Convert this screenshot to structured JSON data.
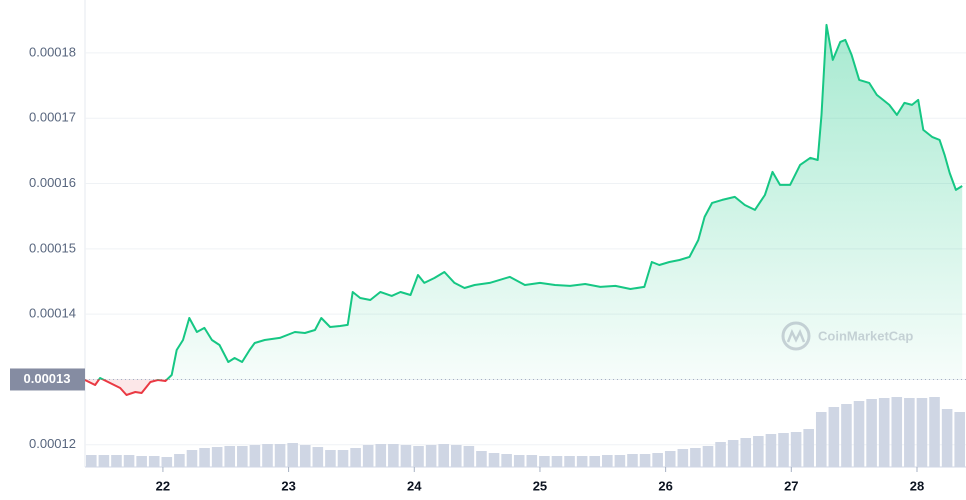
{
  "chart_data": {
    "type": "line",
    "watermark": "CoinMarketCap",
    "xlim": [
      21.38,
      28.39
    ],
    "xticks": [
      22,
      23,
      24,
      25,
      26,
      27,
      28
    ],
    "ylim": [
      0.0001166,
      0.0001881
    ],
    "yticks": [
      0.00012,
      0.00013,
      0.00014,
      0.00015,
      0.00016,
      0.00017,
      0.00018
    ],
    "grid": true,
    "baseline": 0.00013,
    "x": [
      21.38,
      21.46,
      21.5,
      21.58,
      21.66,
      21.71,
      21.78,
      21.83,
      21.9,
      21.96,
      22.02,
      22.07,
      22.11,
      22.16,
      22.21,
      22.27,
      22.33,
      22.39,
      22.45,
      22.52,
      22.57,
      22.63,
      22.69,
      22.73,
      22.81,
      22.93,
      23.05,
      23.13,
      23.21,
      23.26,
      23.33,
      23.41,
      23.47,
      23.51,
      23.57,
      23.65,
      23.73,
      23.82,
      23.89,
      23.97,
      24.03,
      24.08,
      24.16,
      24.24,
      24.32,
      24.4,
      24.48,
      24.6,
      24.76,
      24.88,
      25.0,
      25.12,
      25.24,
      25.36,
      25.48,
      25.6,
      25.72,
      25.83,
      25.89,
      25.95,
      26.03,
      26.11,
      26.19,
      26.26,
      26.31,
      26.37,
      26.45,
      26.55,
      26.63,
      26.71,
      26.79,
      26.85,
      26.91,
      26.99,
      27.07,
      27.15,
      27.21,
      27.24,
      27.28,
      27.33,
      27.39,
      27.43,
      27.48,
      27.54,
      27.62,
      27.68,
      27.73,
      27.78,
      27.84,
      27.9,
      27.96,
      28.01,
      28.05,
      28.12,
      28.18,
      28.22,
      28.26,
      28.31,
      28.36
    ],
    "series": [
      {
        "color": "#16c784",
        "below_color": "#ea3943",
        "values": [
          0.00012992,
          0.00012916,
          0.00013023,
          0.00012946,
          0.0001287,
          0.00012763,
          0.00012809,
          0.00012793,
          0.00012962,
          0.00012992,
          0.00012977,
          0.00013069,
          0.00013452,
          0.00013605,
          0.00013942,
          0.00013727,
          0.00013789,
          0.00013605,
          0.00013528,
          0.00013268,
          0.00013329,
          0.00013268,
          0.00013452,
          0.00013559,
          0.00013605,
          0.00013636,
          0.00013727,
          0.00013712,
          0.00013758,
          0.00013942,
          0.00013804,
          0.00013819,
          0.00013835,
          0.0001434,
          0.00014248,
          0.00014217,
          0.0001434,
          0.00014279,
          0.0001434,
          0.00014294,
          0.000146,
          0.00014478,
          0.00014554,
          0.00014646,
          0.00014478,
          0.00014401,
          0.00014447,
          0.00014478,
          0.0001457,
          0.00014447,
          0.00014478,
          0.00014447,
          0.00014432,
          0.00014462,
          0.00014417,
          0.00014432,
          0.00014386,
          0.00014417,
          0.00014799,
          0.00014753,
          0.00014799,
          0.0001483,
          0.00014876,
          0.00015136,
          0.00015489,
          0.00015703,
          0.00015749,
          0.00015795,
          0.00015672,
          0.00015596,
          0.00015825,
          0.00016178,
          0.00015979,
          0.00015979,
          0.00016285,
          0.00016392,
          0.00016361,
          0.00017051,
          0.00018429,
          0.00017893,
          0.00018168,
          0.00018199,
          0.00017969,
          0.00017587,
          0.00017541,
          0.00017357,
          0.0001728,
          0.00017204,
          0.00017051,
          0.00017234,
          0.00017204,
          0.0001728,
          0.00016821,
          0.00016714,
          0.00016668,
          0.00016438,
          0.00016162,
          0.00015902,
          0.00015963
        ]
      }
    ],
    "volume": {
      "color": "#cfd6e4",
      "ylim": [
        0,
        100
      ],
      "values": [
        12,
        12,
        12,
        12,
        11,
        11,
        10,
        13,
        17,
        19,
        20,
        21,
        21,
        22,
        23,
        23,
        24,
        22,
        20,
        17,
        17,
        19,
        22,
        23,
        23,
        22,
        21,
        22,
        23,
        22,
        21,
        16,
        14,
        13,
        12,
        12,
        11,
        11,
        11,
        11,
        11,
        12,
        12,
        13,
        13,
        14,
        16,
        18,
        19,
        21,
        25,
        27,
        29,
        31,
        33,
        34,
        35,
        38,
        55,
        60,
        63,
        66,
        68,
        69,
        70,
        69,
        69,
        70,
        58,
        55
      ]
    }
  }
}
